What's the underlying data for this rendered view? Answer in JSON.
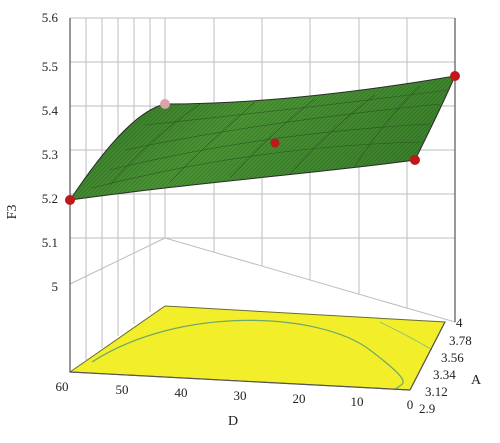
{
  "chart_data": {
    "type": "surface3d",
    "zlabel": "F3",
    "xlabel": "D",
    "ylabel": "A",
    "zticks": [
      "5",
      "5.1",
      "5.2",
      "5.3",
      "5.4",
      "5.5",
      "5.6"
    ],
    "xticks": [
      "60",
      "50",
      "40",
      "30",
      "20",
      "10",
      "0"
    ],
    "yticks": [
      "2.9",
      "3.12",
      "3.34",
      "3.56",
      "3.78",
      "4"
    ],
    "zlim": [
      5.0,
      5.6
    ],
    "xlim": [
      0,
      60
    ],
    "ylim": [
      2.9,
      4.0
    ],
    "surface_corners": [
      {
        "D": 60,
        "A": 2.9,
        "F3": 5.195
      },
      {
        "D": 60,
        "A": 4.0,
        "F3": 5.41
      },
      {
        "D": 0,
        "A": 2.9,
        "F3": 5.3
      },
      {
        "D": 0,
        "A": 4.0,
        "F3": 5.49
      }
    ],
    "design_points": [
      {
        "D": 60,
        "A": 2.9,
        "F3": 5.195
      },
      {
        "D": 60,
        "A": 4.0,
        "F3": 5.41
      },
      {
        "D": 30,
        "A": 3.45,
        "F3": 5.345
      },
      {
        "D": 0,
        "A": 2.9,
        "F3": 5.3
      },
      {
        "D": 0,
        "A": 4.0,
        "F3": 5.49
      }
    ],
    "surface_color": "#3f8a2f",
    "mesh_color": "#1d3f12",
    "floor_color": "#f2ee2a",
    "point_color": "#c0171b"
  }
}
